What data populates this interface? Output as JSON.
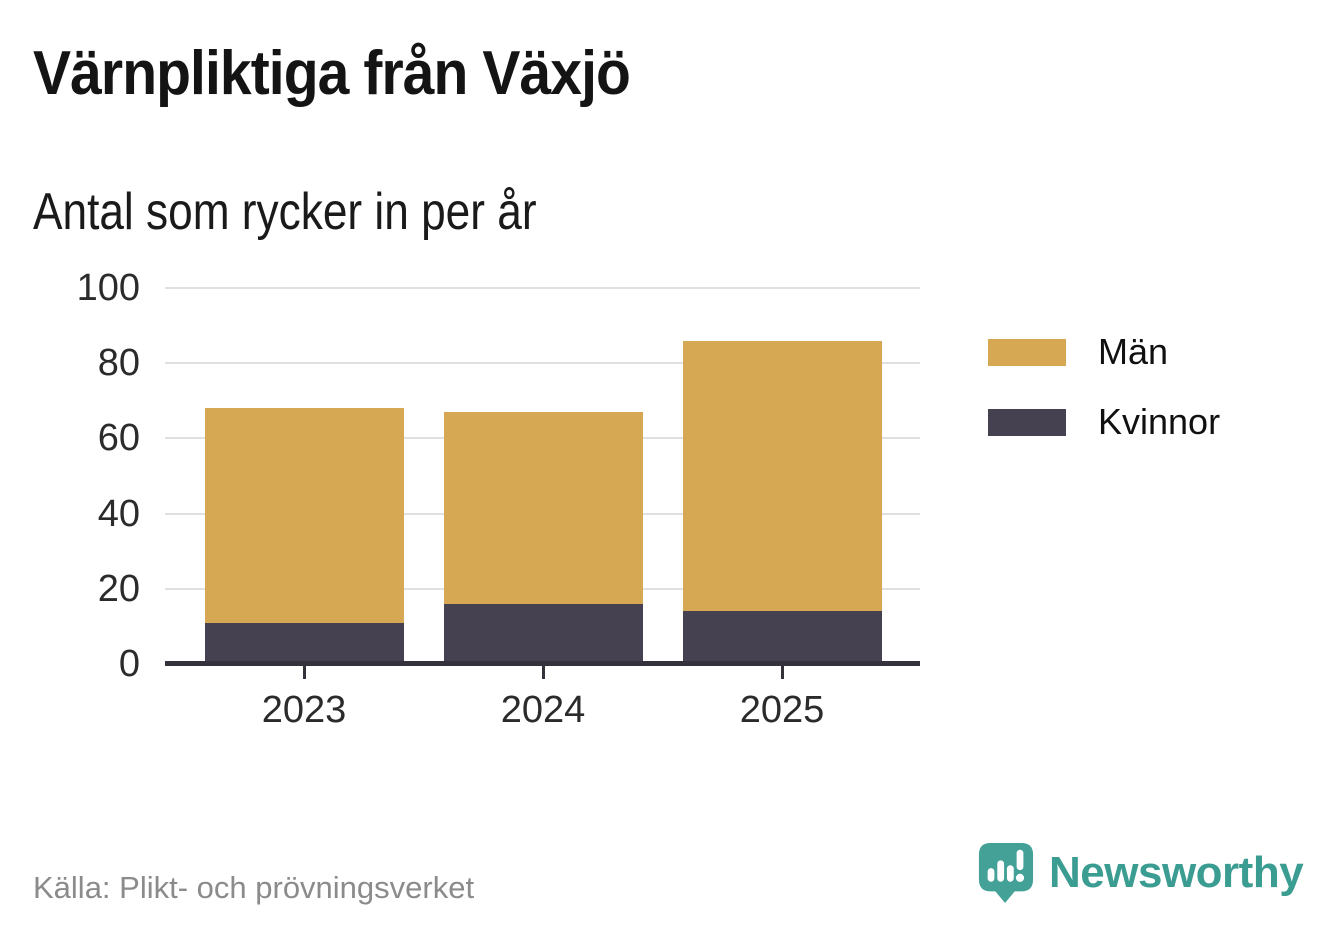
{
  "page": {
    "background": "#ffffff"
  },
  "header": {
    "title": "Värnpliktiga från Växjö",
    "subtitle": "Antal som rycker in per år"
  },
  "footer": {
    "source": "Källa: Plikt- och prövningsverket",
    "brand": "Newsworthy"
  },
  "colors": {
    "men_gold": "#d6a853",
    "women_slate": "#454150",
    "axis": "#36323c",
    "gridline": "#e0e0e0",
    "tick_label": "#2b2b2b",
    "source_gray": "#8b8b8b",
    "brand_teal": "#3b9c92",
    "icon_teal": "#43a198"
  },
  "chart_data": {
    "type": "bar",
    "stacked": true,
    "title": "Värnpliktiga från Växjö",
    "subtitle": "Antal som rycker in per år",
    "categories": [
      "2023",
      "2024",
      "2025"
    ],
    "series": [
      {
        "name": "Män",
        "color": "#d6a853",
        "values": [
          57,
          51,
          72
        ]
      },
      {
        "name": "Kvinnor",
        "color": "#454150",
        "values": [
          11,
          16,
          14
        ]
      }
    ],
    "stack_order_bottom_to_top": [
      "Kvinnor",
      "Män"
    ],
    "totals": [
      68,
      67,
      86
    ],
    "xlabel": "",
    "ylabel": "",
    "ylim": [
      0,
      100
    ],
    "yticks": [
      0,
      20,
      40,
      60,
      80,
      100
    ],
    "grid": "horizontal",
    "legend_position": "right",
    "source": "Källa: Plikt- och prövningsverket"
  }
}
